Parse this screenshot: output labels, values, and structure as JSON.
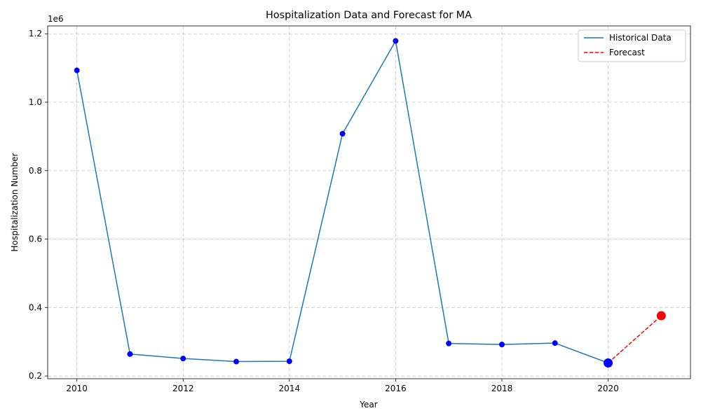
{
  "chart_data": {
    "type": "line",
    "title": "Hospitalization Data and Forecast for MA",
    "xlabel": "Year",
    "ylabel": "Hospitalization Number",
    "y_offset_label": "1e6",
    "xlim": [
      2009.45,
      2021.55
    ],
    "ylim": [
      192000,
      1223000
    ],
    "x_ticks": [
      2010,
      2012,
      2014,
      2016,
      2018,
      2020
    ],
    "x_tick_labels": [
      "2010",
      "2012",
      "2014",
      "2016",
      "2018",
      "2020"
    ],
    "y_ticks": [
      200000,
      400000,
      600000,
      800000,
      1000000,
      1200000
    ],
    "y_tick_labels": [
      "0.2",
      "0.4",
      "0.6",
      "0.8",
      "1.0",
      "1.2"
    ],
    "grid": true,
    "legend_position": "top-right",
    "series": [
      {
        "name": "Historical Data",
        "style": "solid",
        "color": "#1f77b4",
        "marker_color": "#0000ff",
        "x": [
          2010,
          2011,
          2012,
          2013,
          2014,
          2015,
          2016,
          2017,
          2018,
          2019,
          2020
        ],
        "values": [
          1093000,
          264000,
          251000,
          242000,
          243000,
          908000,
          1179000,
          295000,
          292000,
          296000,
          238000
        ]
      },
      {
        "name": "Forecast",
        "style": "dashed",
        "color": "#ff0000",
        "marker_color": "#ff0000",
        "x": [
          2020,
          2021
        ],
        "values": [
          238000,
          376000
        ]
      }
    ]
  }
}
